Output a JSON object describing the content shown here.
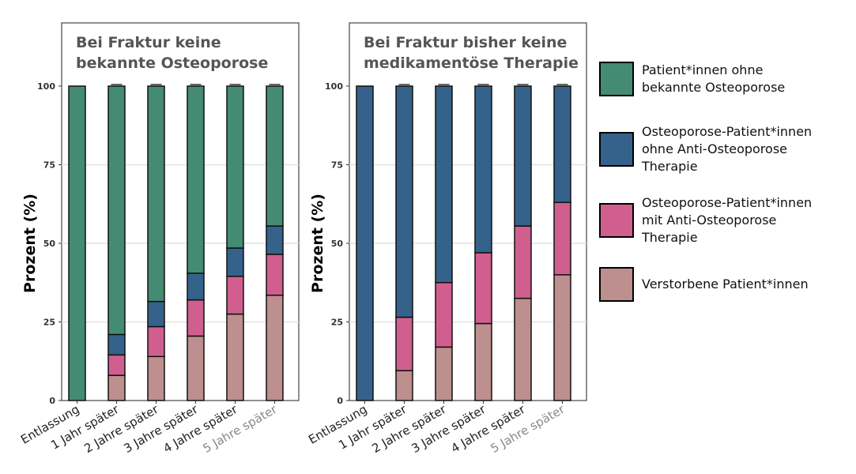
{
  "chart_data": [
    {
      "type": "bar",
      "stacked": true,
      "title": "Bei Fraktur keine\nbekannte Osteoporose",
      "ylabel": "Prozent (%)",
      "ylim": [
        0,
        100
      ],
      "yticks": [
        0,
        25,
        50,
        75,
        100
      ],
      "categories": [
        "Entlassung",
        "1 Jahr später",
        "2 Jahre später",
        "3 Jahre später",
        "4 Jahre später",
        "5 Jahre später"
      ],
      "series": [
        {
          "name": "Verstorbene Patient*innen",
          "values": [
            0,
            8,
            14,
            20.5,
            27.5,
            33.5
          ]
        },
        {
          "name": "Osteoporose-Patient*innen mit Anti-Osteoporose Therapie",
          "values": [
            0,
            6.5,
            9.5,
            11.5,
            12,
            13
          ]
        },
        {
          "name": "Osteoporose-Patient*innen ohne Anti-Osteoporose Therapie",
          "values": [
            0,
            6.5,
            8,
            8.5,
            9,
            9
          ]
        },
        {
          "name": "Patient*innen ohne bekannte Osteoporose",
          "values": [
            100,
            79,
            68.5,
            59.5,
            51.5,
            44.5
          ]
        }
      ]
    },
    {
      "type": "bar",
      "stacked": true,
      "title": "Bei Fraktur bisher keine\nmedikamentöse Therapie",
      "ylabel": "Prozent (%)",
      "ylim": [
        0,
        100
      ],
      "yticks": [
        0,
        25,
        50,
        75,
        100
      ],
      "categories": [
        "Entlassung",
        "1 Jahr später",
        "2 Jahre später",
        "3 Jahre später",
        "4 Jahre später",
        "5 Jahre später"
      ],
      "series": [
        {
          "name": "Verstorbene Patient*innen",
          "values": [
            0,
            9.5,
            17,
            24.5,
            32.5,
            40
          ]
        },
        {
          "name": "Osteoporose-Patient*innen mit Anti-Osteoporose Therapie",
          "values": [
            0,
            17,
            20.5,
            22.5,
            23,
            23
          ]
        },
        {
          "name": "Osteoporose-Patient*innen ohne Anti-Osteoporose Therapie",
          "values": [
            100,
            73.5,
            62.5,
            53,
            44.5,
            37
          ]
        },
        {
          "name": "Patient*innen ohne bekannte Osteoporose",
          "values": [
            0,
            0,
            0,
            0,
            0,
            0
          ]
        }
      ]
    }
  ],
  "legend": [
    {
      "label": "Patient*innen ohne\n bekannte Osteoporose",
      "color": "#448b73"
    },
    {
      "label": "Osteoporose-Patient*innen\nohne Anti-Osteoporose\nTherapie",
      "color": "#35628a"
    },
    {
      "label": "Osteoporose-Patient*innen\nmit Anti-Osteoporose\nTherapie",
      "color": "#d05f8f"
    },
    {
      "label": "Verstorbene Patient*innen",
      "color": "#bd8f8e"
    }
  ],
  "colors": [
    "#bd8f8e",
    "#d05f8f",
    "#35628a",
    "#448b73"
  ]
}
